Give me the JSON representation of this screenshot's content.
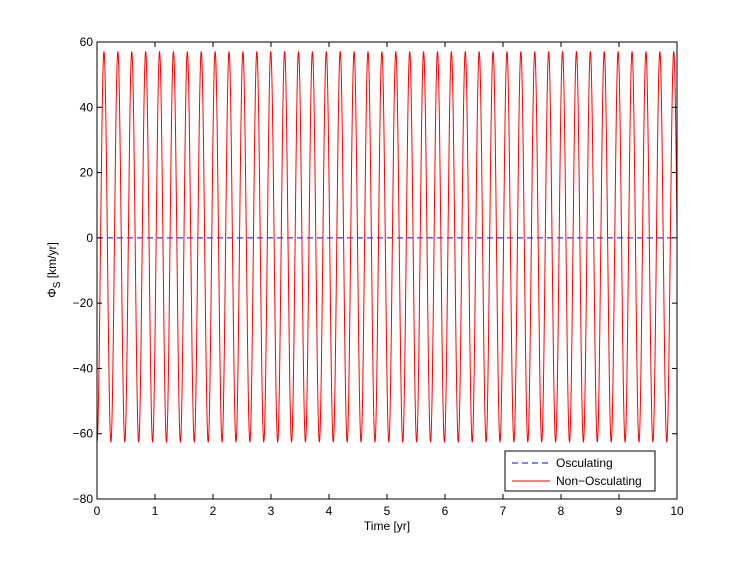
{
  "chart_data": {
    "type": "line",
    "title": "",
    "xlabel": "Time [yr]",
    "ylabel_main": "Φ",
    "ylabel_sub": "S",
    "ylabel_unit": " [km/yr]",
    "xlim": [
      0,
      10
    ],
    "ylim": [
      -80,
      60
    ],
    "xticks": [
      0,
      1,
      2,
      3,
      4,
      5,
      6,
      7,
      8,
      9,
      10
    ],
    "yticks": [
      -80,
      -60,
      -40,
      -20,
      0,
      20,
      40,
      60
    ],
    "x_tick_labels": [
      "0",
      "1",
      "2",
      "3",
      "4",
      "5",
      "6",
      "7",
      "8",
      "9",
      "10"
    ],
    "y_tick_labels": [
      "−80",
      "−60",
      "−40",
      "−20",
      "0",
      "20",
      "40",
      "60"
    ],
    "grid": false,
    "legend_position": "bottom-right",
    "series": [
      {
        "name": "Osculating",
        "color": "#0000ff",
        "line_style": "dashed",
        "x": [
          0,
          10
        ],
        "y": [
          0,
          0
        ]
      },
      {
        "name": "Non−Osculating",
        "color": "#ff0000",
        "line_style": "solid",
        "waveform": "periodic",
        "period_yr": 0.2396,
        "max": 57,
        "min": -62.5,
        "x_first_max": 0.12,
        "x_last_max": 9.95,
        "x_first_min": 0.0,
        "x_last_min": 9.84
      }
    ]
  }
}
